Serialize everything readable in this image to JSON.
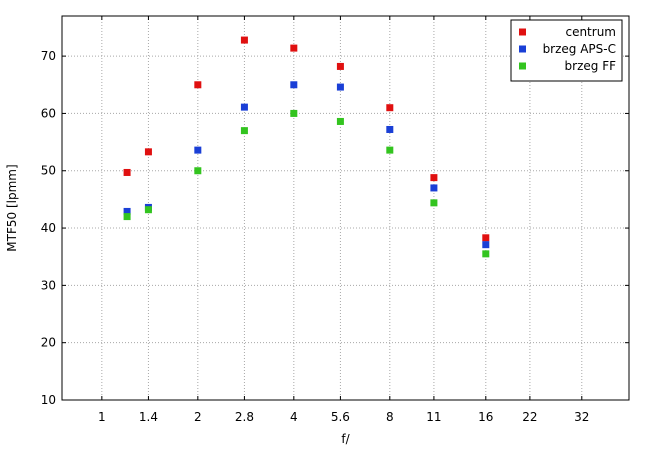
{
  "chart_data": {
    "type": "scatter",
    "xlabel": "f/",
    "ylabel": "MTF50 [lpmm]",
    "x_scale": "log2",
    "xlim": [
      0.75,
      45
    ],
    "ylim": [
      10,
      77
    ],
    "x_ticks": [
      {
        "value": 1,
        "label": "1"
      },
      {
        "value": 1.4,
        "label": "1.4"
      },
      {
        "value": 2,
        "label": "2"
      },
      {
        "value": 2.8,
        "label": "2.8"
      },
      {
        "value": 4,
        "label": "4"
      },
      {
        "value": 5.6,
        "label": "5.6"
      },
      {
        "value": 8,
        "label": "8"
      },
      {
        "value": 11,
        "label": "11"
      },
      {
        "value": 16,
        "label": "16"
      },
      {
        "value": 22,
        "label": "22"
      },
      {
        "value": 32,
        "label": "32"
      }
    ],
    "y_ticks": [
      10,
      20,
      30,
      40,
      50,
      60,
      70
    ],
    "grid": true,
    "legend_position": "top-right",
    "series": [
      {
        "name": "centrum",
        "color": "#e01010",
        "points": [
          [
            1.2,
            49.7
          ],
          [
            1.4,
            53.3
          ],
          [
            2,
            65
          ],
          [
            2.8,
            72.8
          ],
          [
            4,
            71.4
          ],
          [
            5.6,
            68.2
          ],
          [
            8,
            61
          ],
          [
            11,
            48.8
          ],
          [
            16,
            38.3
          ]
        ]
      },
      {
        "name": "brzeg APS-C",
        "color": "#1a3fd6",
        "points": [
          [
            1.2,
            42.9
          ],
          [
            1.4,
            43.6
          ],
          [
            2,
            53.6
          ],
          [
            2.8,
            61.1
          ],
          [
            4,
            65
          ],
          [
            5.6,
            64.6
          ],
          [
            8,
            57.2
          ],
          [
            11,
            47
          ],
          [
            16,
            37.1
          ]
        ]
      },
      {
        "name": "brzeg FF",
        "color": "#33c41f",
        "points": [
          [
            1.2,
            42
          ],
          [
            1.4,
            43.2
          ],
          [
            2,
            50
          ],
          [
            2.8,
            57
          ],
          [
            4,
            60
          ],
          [
            5.6,
            58.6
          ],
          [
            8,
            53.6
          ],
          [
            11,
            44.4
          ],
          [
            16,
            35.5
          ]
        ]
      }
    ]
  }
}
